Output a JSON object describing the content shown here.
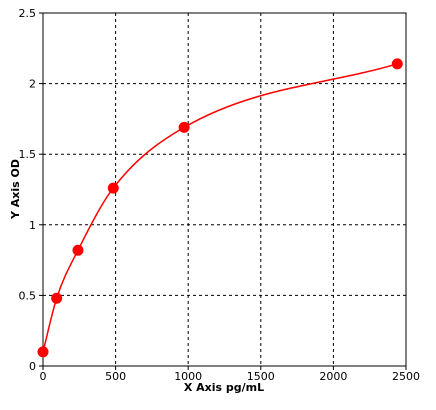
{
  "chart_data": {
    "type": "scatter",
    "title": "",
    "xlabel": "X Axis pg/mL",
    "ylabel": "Y Axis OD",
    "xlim": [
      0,
      2500
    ],
    "ylim": [
      0,
      2.5
    ],
    "x_ticks": [
      "0",
      "500",
      "1000",
      "1500",
      "2000",
      "2500"
    ],
    "y_ticks": [
      "0",
      "0.5",
      "1",
      "1.5",
      "2",
      "2.5"
    ],
    "grid": "dashed",
    "series": [
      {
        "points": [
          {
            "x": 0,
            "y": 0.1
          },
          {
            "x": 94,
            "y": 0.48
          },
          {
            "x": 241,
            "y": 0.82
          },
          {
            "x": 484,
            "y": 1.26
          },
          {
            "x": 972,
            "y": 1.69
          },
          {
            "x": 2440,
            "y": 2.14
          }
        ],
        "fit_curve": true,
        "color": "#ff0000"
      }
    ]
  }
}
